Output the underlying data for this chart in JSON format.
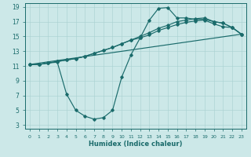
{
  "xlabel": "Humidex (Indice chaleur)",
  "bg_color": "#cce8e8",
  "line_color": "#1a6b6b",
  "grid_color": "#a8d0d0",
  "xlim": [
    -0.5,
    23.5
  ],
  "ylim": [
    2.5,
    19.5
  ],
  "xticks": [
    0,
    1,
    2,
    3,
    4,
    5,
    6,
    7,
    8,
    9,
    10,
    11,
    12,
    13,
    14,
    15,
    16,
    17,
    18,
    19,
    20,
    21,
    22,
    23
  ],
  "yticks": [
    3,
    5,
    7,
    9,
    11,
    13,
    15,
    17,
    19
  ],
  "curve1_x": [
    0,
    1,
    2,
    3,
    4,
    5,
    6,
    7,
    8,
    9,
    10,
    11,
    12,
    13,
    14,
    15,
    16,
    17,
    18,
    19,
    20,
    21,
    22,
    23
  ],
  "curve1_y": [
    11.2,
    11.2,
    11.4,
    11.6,
    11.8,
    12.0,
    12.3,
    12.7,
    13.1,
    13.5,
    14.0,
    14.5,
    15.0,
    15.5,
    16.1,
    16.5,
    17.0,
    17.2,
    17.4,
    17.5,
    17.0,
    16.8,
    16.2,
    15.3
  ],
  "curve2_x": [
    0,
    1,
    2,
    3,
    4,
    5,
    6,
    7,
    8,
    9,
    10,
    11,
    12,
    13,
    14,
    15,
    16,
    17,
    18,
    19,
    20,
    21,
    22,
    23
  ],
  "curve2_y": [
    11.2,
    11.2,
    11.4,
    11.6,
    11.8,
    12.0,
    12.3,
    12.7,
    13.1,
    13.5,
    14.0,
    14.5,
    14.8,
    15.2,
    15.8,
    16.2,
    16.6,
    16.9,
    17.1,
    17.2,
    16.7,
    16.3,
    16.2,
    15.3
  ],
  "curve3_x": [
    0,
    1,
    2,
    3,
    4,
    5,
    6,
    7,
    8,
    9,
    10,
    11,
    12,
    13,
    14,
    15,
    16,
    17,
    18,
    19,
    20,
    21,
    22,
    23
  ],
  "curve3_y": [
    11.2,
    11.2,
    11.4,
    11.5,
    7.2,
    5.0,
    4.2,
    3.8,
    4.0,
    5.0,
    9.5,
    12.5,
    14.8,
    17.2,
    18.8,
    18.9,
    17.5,
    17.5,
    17.3,
    17.3,
    17.0,
    16.8,
    16.2,
    15.3
  ],
  "curve4_x": [
    0,
    23
  ],
  "curve4_y": [
    11.2,
    15.3
  ],
  "marker": "D",
  "marker_size": 1.8,
  "linewidth": 0.85
}
